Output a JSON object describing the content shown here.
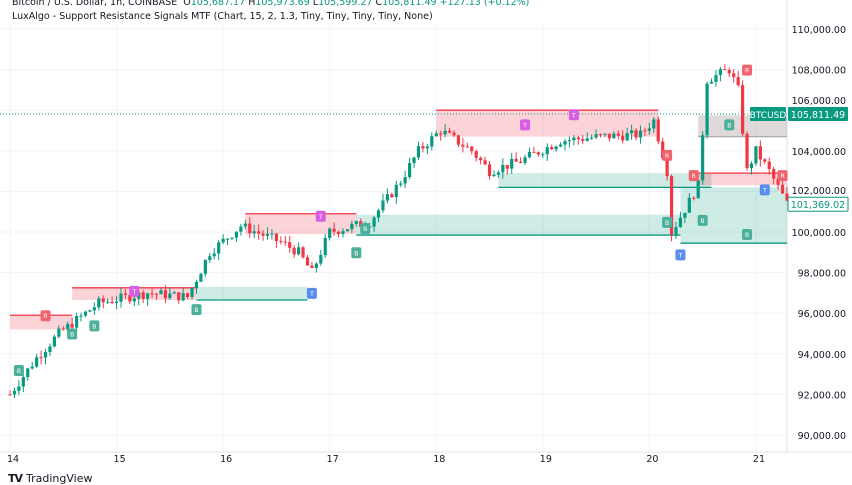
{
  "header": {
    "symbol": "Bitcoin / U.S. Dollar, 1h, COINBASE",
    "o_label": "O",
    "o": "105,687.17",
    "h_label": "H",
    "h": "105,973.69",
    "l_label": "L",
    "l": "105,599.27",
    "c_label": "C",
    "c": "105,811.49",
    "change": "+127.13 (+0.12%)"
  },
  "indicator": "LuxAlgo - Support Resistance Signals MTF (Chart, 15, 2, 1.3, Tiny, Tiny, Tiny, Tiny, None)",
  "branding": "TradingView",
  "colors": {
    "up": "#089981",
    "down": "#f23645",
    "res_zone": "#f7c6cb",
    "sup_zone": "#cde9e3",
    "grid": "#f0f3fa"
  },
  "chart_data": {
    "type": "candlestick",
    "symbol_badge": "BTCUSD",
    "last_price_label": "105,811.49",
    "current_price_label": "101,369.02",
    "ylim": [
      89000,
      110500
    ],
    "yticks": [
      90000,
      92000,
      94000,
      96000,
      98000,
      100000,
      102000,
      104000,
      106000,
      108000,
      110000
    ],
    "ytick_labels": [
      "90,000.00",
      "92,000.00",
      "94,000.00",
      "96,000.00",
      "98,000.00",
      "100,000.00",
      "102,000.00",
      "104,000.00",
      "106,000.00",
      "108,000.00",
      "110,000.00"
    ],
    "xlim_hours": [
      -1,
      187
    ],
    "xticks": [
      {
        "hour": 0,
        "label": "14"
      },
      {
        "hour": 24,
        "label": "15"
      },
      {
        "hour": 48,
        "label": "16"
      },
      {
        "hour": 72,
        "label": "17"
      },
      {
        "hour": 96,
        "label": "18"
      },
      {
        "hour": 120,
        "label": "19"
      },
      {
        "hour": 144,
        "label": "20"
      },
      {
        "hour": 168,
        "label": "21"
      }
    ],
    "price_path": [
      [
        0,
        92000
      ],
      [
        6,
        93800
      ],
      [
        11,
        95000
      ],
      [
        20,
        96500
      ],
      [
        31,
        97000
      ],
      [
        40,
        96800
      ],
      [
        45,
        99000
      ],
      [
        52,
        100300
      ],
      [
        61,
        99500
      ],
      [
        65,
        99000
      ],
      [
        68,
        98000
      ],
      [
        72,
        100000
      ],
      [
        81,
        100500
      ],
      [
        88,
        102500
      ],
      [
        92,
        104000
      ],
      [
        97,
        105000
      ],
      [
        104,
        104000
      ],
      [
        108,
        103000
      ],
      [
        115,
        103500
      ],
      [
        124,
        104500
      ],
      [
        133,
        104700
      ],
      [
        142,
        104800
      ],
      [
        145,
        105500
      ],
      [
        148,
        103000
      ],
      [
        149,
        100000
      ],
      [
        153,
        101500
      ],
      [
        155,
        102300
      ],
      [
        157,
        107500
      ],
      [
        162,
        108000
      ],
      [
        164,
        107000
      ],
      [
        166,
        103000
      ],
      [
        168,
        104000
      ],
      [
        171,
        103000
      ],
      [
        175,
        101400
      ]
    ],
    "zones": [
      {
        "kind": "resistance",
        "from": 0,
        "to": 14,
        "low": 95200,
        "high": 95900
      },
      {
        "kind": "resistance",
        "from": 14,
        "to": 42,
        "low": 96650,
        "high": 97250
      },
      {
        "kind": "support",
        "from": 42,
        "to": 67,
        "low": 96650,
        "high": 97300
      },
      {
        "kind": "resistance",
        "from": 53,
        "to": 78,
        "low": 99900,
        "high": 100900
      },
      {
        "kind": "support",
        "from": 78,
        "to": 151,
        "low": 99850,
        "high": 100850
      },
      {
        "kind": "resistance",
        "from": 96,
        "to": 146,
        "low": 104700,
        "high": 106000
      },
      {
        "kind": "support",
        "from": 110,
        "to": 158,
        "low": 102200,
        "high": 102900
      },
      {
        "kind": "support",
        "from": 151,
        "to": 175,
        "low": 99450,
        "high": 102200
      },
      {
        "kind": "resistance",
        "from": 155,
        "to": 175,
        "low": 102300,
        "high": 102900
      },
      {
        "kind": "neutral",
        "from": 155,
        "to": 175,
        "low": 104700,
        "high": 105750
      }
    ],
    "signals": [
      {
        "hour": 2,
        "price": 93200,
        "text": "B",
        "kind": "support"
      },
      {
        "hour": 8,
        "price": 95900,
        "text": "R",
        "kind": "resistance"
      },
      {
        "hour": 14,
        "price": 95000,
        "text": "B",
        "kind": "support"
      },
      {
        "hour": 19,
        "price": 95400,
        "text": "B",
        "kind": "support"
      },
      {
        "hour": 28,
        "price": 97100,
        "text": "T",
        "kind": "test"
      },
      {
        "hour": 42,
        "price": 96200,
        "text": "B",
        "kind": "support"
      },
      {
        "hour": 68,
        "price": 97000,
        "text": "T",
        "kind": "blue"
      },
      {
        "hour": 70,
        "price": 100800,
        "text": "T",
        "kind": "test"
      },
      {
        "hour": 78,
        "price": 99000,
        "text": "B",
        "kind": "support"
      },
      {
        "hour": 80,
        "price": 100200,
        "text": "B",
        "kind": "support"
      },
      {
        "hour": 116,
        "price": 105300,
        "text": "T",
        "kind": "test"
      },
      {
        "hour": 127,
        "price": 105800,
        "text": "T",
        "kind": "test"
      },
      {
        "hour": 148,
        "price": 103800,
        "text": "R",
        "kind": "resistance"
      },
      {
        "hour": 148,
        "price": 100500,
        "text": "B",
        "kind": "support"
      },
      {
        "hour": 151,
        "price": 98900,
        "text": "T",
        "kind": "blue"
      },
      {
        "hour": 154,
        "price": 102800,
        "text": "R",
        "kind": "resistance"
      },
      {
        "hour": 156,
        "price": 100600,
        "text": "B",
        "kind": "support"
      },
      {
        "hour": 162,
        "price": 105300,
        "text": "B",
        "kind": "support"
      },
      {
        "hour": 166,
        "price": 108000,
        "text": "R",
        "kind": "resistance"
      },
      {
        "hour": 166,
        "price": 99900,
        "text": "B",
        "kind": "support"
      },
      {
        "hour": 170,
        "price": 102100,
        "text": "T",
        "kind": "blue"
      },
      {
        "hour": 174,
        "price": 102800,
        "text": "R",
        "kind": "resistance"
      }
    ]
  }
}
